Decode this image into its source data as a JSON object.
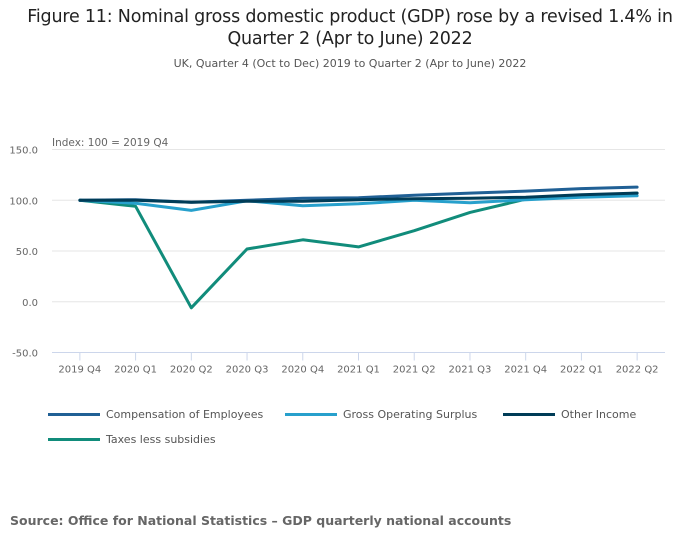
{
  "figure": {
    "title": "Figure 11: Nominal gross domestic product (GDP) rose by a revised 1.4% in Quarter 2 (Apr to June) 2022",
    "subtitle": "UK, Quarter 4 (Oct to Dec) 2019 to Quarter 2 (Apr to June) 2022",
    "source": "Source: Office for National Statistics – GDP quarterly national accounts"
  },
  "chart_data": {
    "type": "line",
    "title": "Figure 11: Nominal gross domestic product (GDP) rose by a revised 1.4% in Quarter 2 (Apr to June) 2022",
    "subtitle": "UK, Quarter 4 (Oct to Dec) 2019 to Quarter 2 (Apr to June) 2022",
    "xlabel": "",
    "ylabel": "Index: 100 = 2019 Q4",
    "ylim": [
      -50,
      150
    ],
    "yticks": [
      150,
      100,
      50,
      0,
      -50
    ],
    "ytick_labels": [
      "150.0",
      "100.0",
      "50.0",
      "0.0",
      "-50.0"
    ],
    "grid": true,
    "legend_position": "bottom",
    "categories": [
      "2019 Q4",
      "2020 Q1",
      "2020 Q2",
      "2020 Q3",
      "2020 Q4",
      "2021 Q1",
      "2021 Q2",
      "2021 Q3",
      "2021 Q4",
      "2022 Q1",
      "2022 Q2"
    ],
    "series": [
      {
        "name": "Compensation of Employees",
        "color": "#206095",
        "values": [
          100,
          100.5,
          98,
          100,
          102,
          102.5,
          105,
          107,
          109,
          111.5,
          113
        ]
      },
      {
        "name": "Gross Operating Surplus",
        "color": "#27a0cc",
        "values": [
          100,
          97,
          90,
          99.5,
          94.5,
          96.5,
          100,
          97.5,
          100.5,
          103,
          104.5
        ]
      },
      {
        "name": "Other Income",
        "color": "#003c57",
        "values": [
          100,
          100,
          98,
          99,
          99,
          100.5,
          101.5,
          102,
          103,
          105.5,
          107
        ]
      },
      {
        "name": "Taxes less subsidies",
        "color": "#118c7b",
        "values": [
          100,
          94,
          -6,
          52,
          61,
          54,
          70,
          88,
          101,
          104,
          107
        ]
      }
    ]
  }
}
